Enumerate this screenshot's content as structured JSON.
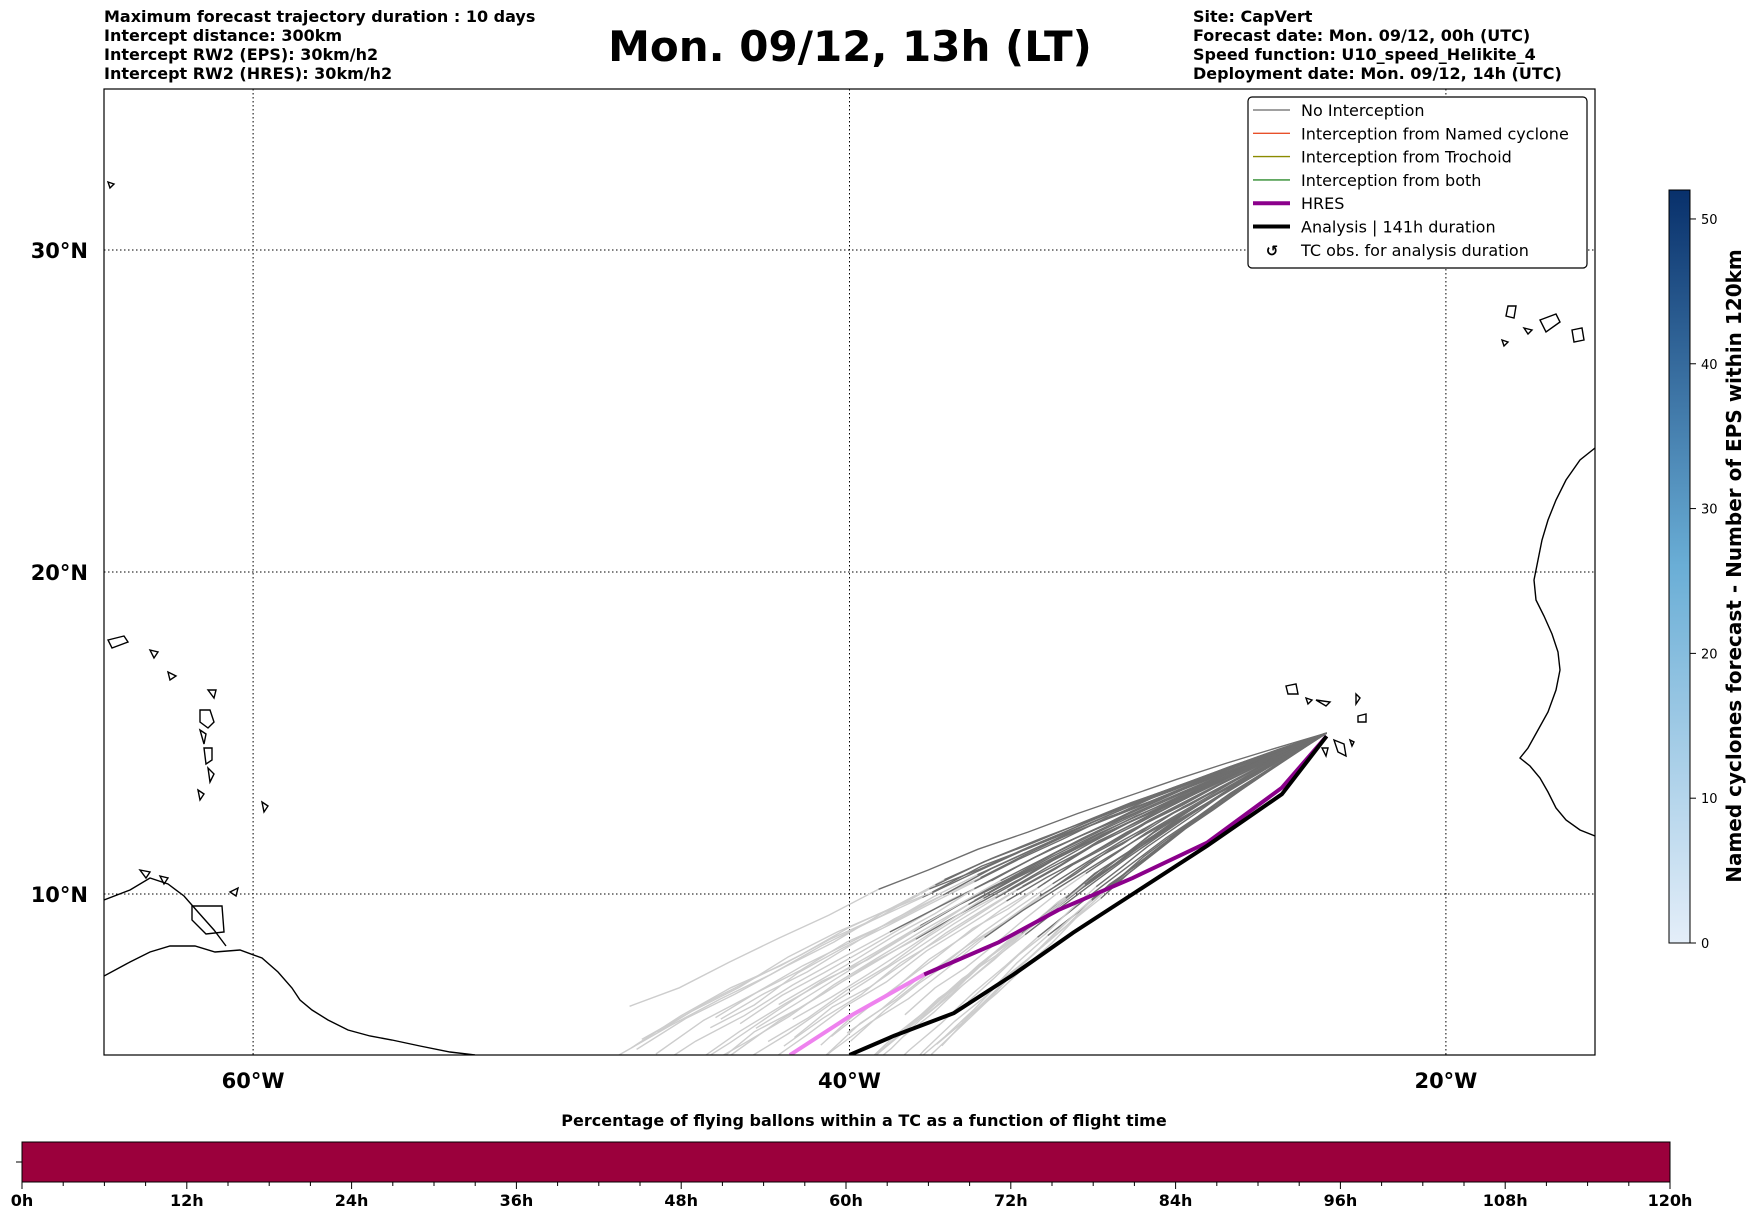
{
  "header": {
    "left_lines": [
      "Maximum forecast trajectory duration : 10 days",
      "Intercept distance: 300km",
      "Intercept RW2 (EPS):  30km/h2",
      "Intercept RW2 (HRES): 30km/h2"
    ],
    "title": "Mon. 09/12, 13h (LT)",
    "right_lines": [
      "Site: CapVert",
      "Forecast date: Mon. 09/12, 00h (UTC)",
      "Speed function: U10_speed_Helikite_4",
      "Deployment date: Mon. 09/12, 14h (UTC)"
    ]
  },
  "map": {
    "extent": {
      "lon_min": -65,
      "lon_max": -15,
      "lat_min": 5,
      "lat_max": 35
    },
    "lon_ticks": [
      {
        "lon": -60,
        "label": "60°W"
      },
      {
        "lon": -40,
        "label": "40°W"
      },
      {
        "lon": -20,
        "label": "20°W"
      }
    ],
    "lat_ticks": [
      {
        "lat": 30,
        "label": "30°N"
      },
      {
        "lat": 20,
        "label": "20°N"
      },
      {
        "lat": 10,
        "label": "10°N"
      }
    ],
    "gridlines": "dotted",
    "site": {
      "lon": -24,
      "lat": 15
    }
  },
  "legend": {
    "placement": "top-right",
    "entries": [
      {
        "label": "No Interception",
        "color": "#808080",
        "style": "thin"
      },
      {
        "label": "Interception from Named cyclone",
        "color": "#e8502a",
        "style": "thin"
      },
      {
        "label": "Interception from Trochoid",
        "color": "#8b8b00",
        "style": "thin"
      },
      {
        "label": "Interception from both",
        "color": "#2e8b2e",
        "style": "thin"
      },
      {
        "label": "HRES",
        "color": "#8b008b",
        "style": "thick"
      },
      {
        "label": "Analysis | 141h duration",
        "color": "#000000",
        "style": "thick"
      },
      {
        "label": "TC obs. for analysis duration",
        "color": "#000000",
        "style": "marker"
      }
    ]
  },
  "colorbar": {
    "label": "Named cyclones forecast - Number of EPS within 120km",
    "min": 0,
    "max": 52,
    "ticks": [
      {
        "value": 0,
        "label": "0"
      },
      {
        "value": 10,
        "label": "10"
      },
      {
        "value": 20,
        "label": "20"
      },
      {
        "value": 30,
        "label": "30"
      },
      {
        "value": 40,
        "label": "40"
      },
      {
        "value": 50,
        "label": "50"
      }
    ],
    "color_low": "#e4eef9",
    "color_high": "#08306b"
  },
  "bottom_bar": {
    "title": "Percentage of flying ballons within a TC as a function of flight time",
    "fill_color": "#9b003c",
    "hours_max": 120,
    "ticks": [
      {
        "h": 0,
        "label": "0h"
      },
      {
        "h": 12,
        "label": "12h"
      },
      {
        "h": 24,
        "label": "24h"
      },
      {
        "h": 36,
        "label": "36h"
      },
      {
        "h": 48,
        "label": "48h"
      },
      {
        "h": 60,
        "label": "60h"
      },
      {
        "h": 72,
        "label": "72h"
      },
      {
        "h": 84,
        "label": "84h"
      },
      {
        "h": 96,
        "label": "96h"
      },
      {
        "h": 108,
        "label": "108h"
      },
      {
        "h": 120,
        "label": "120h"
      }
    ]
  },
  "tracks": {
    "hres": [
      [
        -24.0,
        14.9
      ],
      [
        -25.5,
        13.3
      ],
      [
        -28.0,
        11.6
      ],
      [
        -30.5,
        10.5
      ],
      [
        -33.0,
        9.5
      ],
      [
        -35.0,
        8.5
      ],
      [
        -37.5,
        7.5
      ],
      [
        -40.0,
        6.2
      ],
      [
        -42.0,
        5.0
      ]
    ],
    "analysis": [
      [
        -24.0,
        14.9
      ],
      [
        -25.5,
        13.1
      ],
      [
        -28.0,
        11.5
      ],
      [
        -30.5,
        10.0
      ],
      [
        -32.5,
        8.8
      ],
      [
        -34.5,
        7.5
      ],
      [
        -36.5,
        6.3
      ],
      [
        -38.5,
        5.6
      ],
      [
        -40.0,
        5.0
      ]
    ]
  }
}
